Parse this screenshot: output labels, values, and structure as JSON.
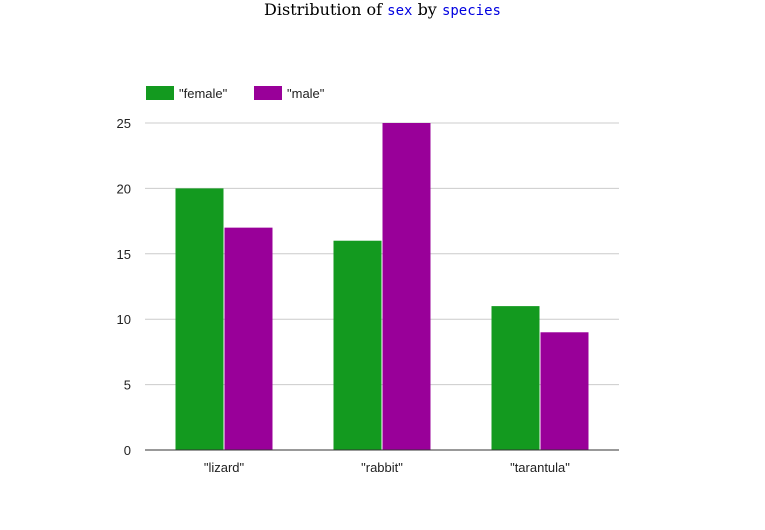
{
  "title": {
    "prefix": "Distribution of",
    "field": "sex",
    "connector": "by",
    "group_field": "species"
  },
  "colors": {
    "female": "#139a1f",
    "male": "#990099",
    "grid": "#cccccc",
    "axis": "#333333"
  },
  "chart_data": {
    "type": "bar",
    "title": "Distribution of sex by species",
    "xlabel": "",
    "ylabel": "",
    "categories": [
      "\"lizard\"",
      "\"rabbit\"",
      "\"tarantula\""
    ],
    "series": [
      {
        "name": "\"female\"",
        "values": [
          20,
          16,
          11
        ]
      },
      {
        "name": "\"male\"",
        "values": [
          17,
          25,
          9
        ]
      }
    ],
    "ylim": [
      0,
      25
    ],
    "yticks": [
      "0",
      "5",
      "10",
      "15",
      "20",
      "25"
    ],
    "grid": true,
    "legend_position": "top-left"
  }
}
